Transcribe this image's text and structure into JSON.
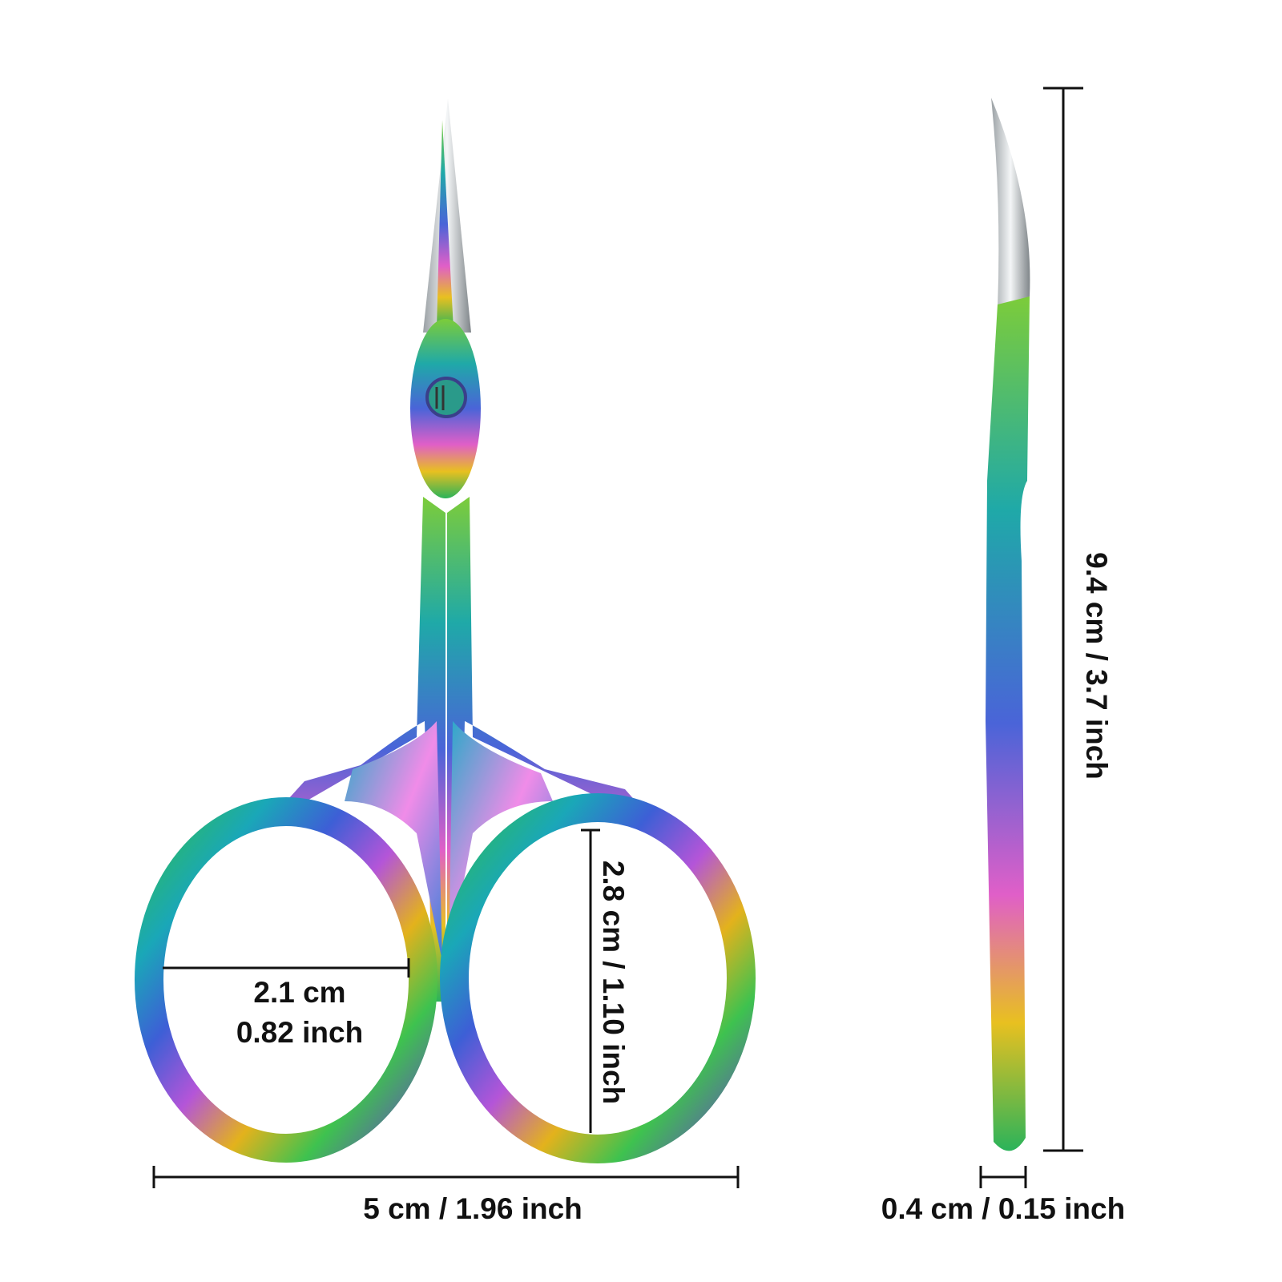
{
  "dimensions": {
    "ring_width": {
      "cm": "2.1 cm",
      "inch": "0.82 inch"
    },
    "ring_height": "2.8 cm / 1.10 inch",
    "total_width": "5 cm / 1.96 inch",
    "total_length": "9.4 cm / 3.7 inch",
    "thickness": "0.4 cm / 0.15 inch"
  }
}
